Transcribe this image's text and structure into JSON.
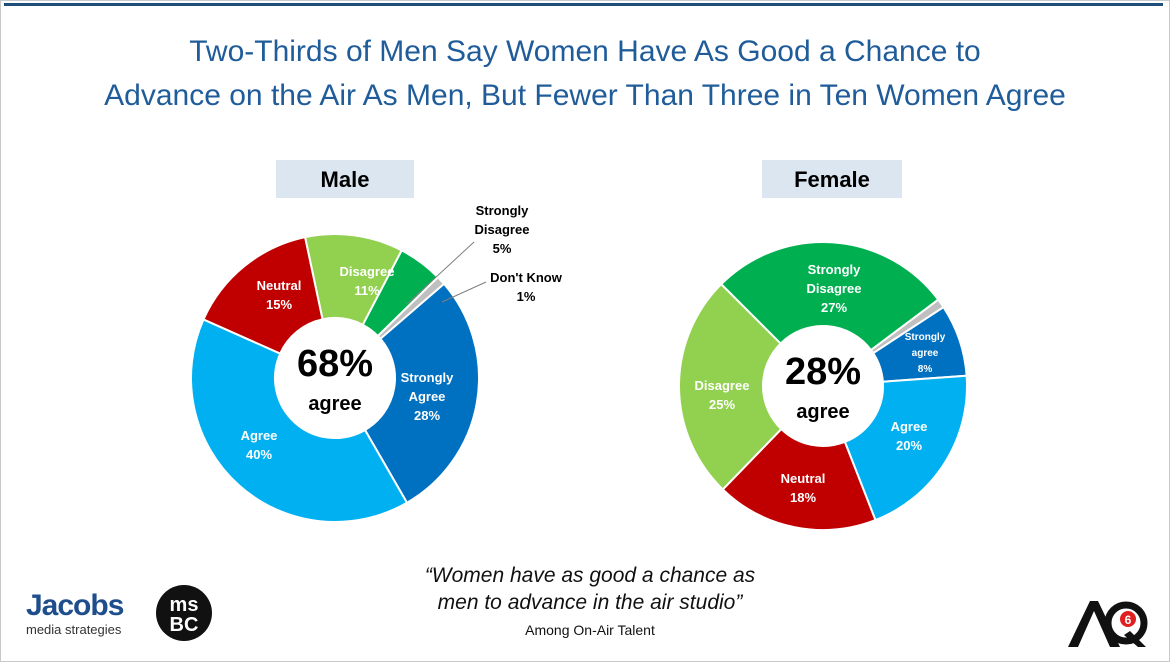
{
  "title": {
    "line1": "Two-Thirds of Men Say Women Have As Good a Chance to",
    "line2": "Advance on the Air As Men, But Fewer Than Three in Ten Women Agree"
  },
  "chart_data": [
    {
      "type": "pie",
      "title": "Male",
      "center_value": "68%",
      "center_label": "agree",
      "slices": [
        {
          "label": "Strongly Agree",
          "value": 28,
          "color": "#0070c0"
        },
        {
          "label": "Agree",
          "value": 40,
          "color": "#00b0f0"
        },
        {
          "label": "Neutral",
          "value": 15,
          "color": "#c00000"
        },
        {
          "label": "Disagree",
          "value": 11,
          "color": "#92d050"
        },
        {
          "label": "Strongly Disagree",
          "value": 5,
          "color": "#00b050"
        },
        {
          "label": "Don't Know",
          "value": 1,
          "color": "#bfbfbf"
        }
      ]
    },
    {
      "type": "pie",
      "title": "Female",
      "center_value": "28%",
      "center_label": "agree",
      "slices": [
        {
          "label": "Strongly agree",
          "value": 8,
          "color": "#0070c0"
        },
        {
          "label": "Agree",
          "value": 20,
          "color": "#00b0f0"
        },
        {
          "label": "Neutral",
          "value": 18,
          "color": "#c00000"
        },
        {
          "label": "Disagree",
          "value": 25,
          "color": "#92d050"
        },
        {
          "label": "Strongly Disagree",
          "value": 27,
          "color": "#00b050"
        },
        {
          "label": "Don't Know",
          "value": 1,
          "color": "#bfbfbf"
        }
      ]
    }
  ],
  "quote": {
    "line1": "“Women have as good a chance as",
    "line2": "men to advance in the air studio”",
    "source": "Among On-Air Talent"
  },
  "logos": {
    "jacobs_word": "Jacobs",
    "jacobs_sub": "media strategies",
    "msbc_text": "ms BC",
    "aq_text": "AQ6"
  }
}
